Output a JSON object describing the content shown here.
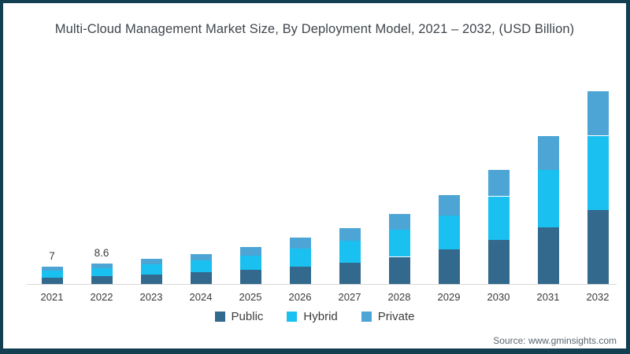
{
  "page": {
    "title": "Multi-Cloud Management Market Size, By Deployment Model, 2021 – 2032, (USD Billion)",
    "source": "Source: www.gminsights.com"
  },
  "colors": {
    "public": "#33698c",
    "hybrid": "#1ac0ef",
    "private": "#4ca5d4",
    "frame": "#123f52",
    "axis_line": "#d8d8d8",
    "text": "#3d3d3d",
    "source_text": "#5a6670"
  },
  "chart_data": {
    "type": "bar",
    "stacked": true,
    "title": "Multi-Cloud Management Market Size, By Deployment Model, 2021 – 2032, (USD Billion)",
    "units": "USD Billion",
    "xlabel": "",
    "ylabel": "",
    "grid": false,
    "y_axis_visible": false,
    "legend_position": "bottom",
    "ylim": [
      0,
      85
    ],
    "categories": [
      "2021",
      "2022",
      "2023",
      "2024",
      "2025",
      "2026",
      "2027",
      "2028",
      "2029",
      "2030",
      "2031",
      "2032"
    ],
    "series": [
      {
        "name": "Public",
        "color_key": "public",
        "values": [
          2.7,
          3.3,
          4.0,
          4.8,
          5.9,
          7.3,
          8.9,
          11.2,
          14.2,
          18.1,
          23.5,
          30.6
        ]
      },
      {
        "name": "Hybrid",
        "color_key": "hybrid",
        "values": [
          2.7,
          3.3,
          4.0,
          4.8,
          5.9,
          7.3,
          8.9,
          11.2,
          14.2,
          18.1,
          23.5,
          30.6
        ]
      },
      {
        "name": "Private",
        "color_key": "private",
        "values": [
          1.6,
          2.0,
          2.5,
          2.9,
          3.4,
          4.4,
          5.4,
          6.6,
          8.4,
          10.8,
          14.0,
          18.3
        ]
      }
    ],
    "totals_estimated": [
      7.0,
      8.6,
      10.5,
      12.5,
      15.2,
      19.0,
      23.2,
      29.0,
      36.8,
      47.0,
      61.0,
      79.5
    ],
    "data_labels": {
      "2021": "7",
      "2022": "8.6"
    }
  }
}
